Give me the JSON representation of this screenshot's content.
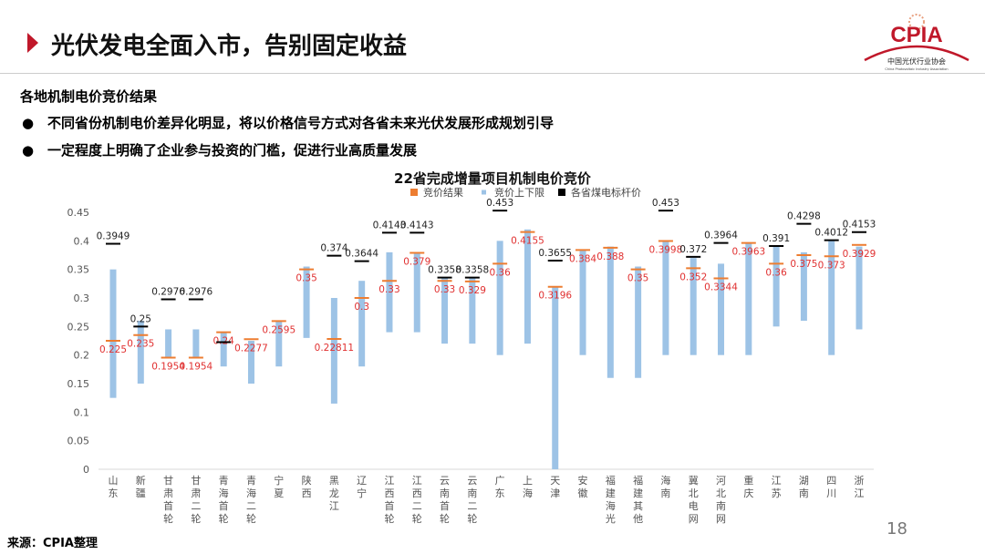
{
  "header": {
    "title": "光伏发电全面入市，告别固定收益",
    "logo_text": "CPIA",
    "logo_subtitle": "中国光伏行业协会",
    "logo_english": "China Photovoltaic Industry Association"
  },
  "subtitle": "各地机制电价竞价结果",
  "bullets": [
    "不同省份机制电价差异化明显，将以价格信号方式对各省未来光伏发展形成规划引导",
    "一定程度上明确了企业参与投资的门槛，促进行业高质量发展"
  ],
  "footer": {
    "source": "来源：CPIA整理",
    "page_number": "18"
  },
  "colors": {
    "accent": "#c0182a",
    "result": "#ed7d31",
    "range": "#9dc3e6",
    "coal": "#000000",
    "result_label": "#e03030"
  },
  "chart_data": {
    "type": "range-bar",
    "title": "22省完成增量项目机制电价竞价",
    "legend": [
      "竞价结果",
      "竞价上下限",
      "各省煤电标杆价"
    ],
    "legend_position": "top",
    "ylim": [
      0,
      0.45
    ],
    "yticks": [
      "0",
      "0.05",
      "0.1",
      "0.15",
      "0.2",
      "0.25",
      "0.3",
      "0.35",
      "0.4",
      "0.45"
    ],
    "grid": false,
    "categories": [
      "山东",
      "新疆",
      "甘肃首轮",
      "甘肃二轮",
      "青海首轮",
      "青海二轮",
      "宁夏",
      "陕西",
      "黑龙江",
      "辽宁",
      "江西首轮",
      "江西二轮",
      "云南首轮",
      "云南二轮",
      "广东",
      "上海",
      "天津",
      "安徽",
      "福建海光",
      "福建其他",
      "海南",
      "冀北电网",
      "河北南网",
      "重庆",
      "江苏",
      "湖南",
      "四川",
      "浙江"
    ],
    "range_low": [
      0.125,
      0.15,
      0.195,
      0.195,
      0.18,
      0.15,
      0.18,
      0.23,
      0.115,
      0.18,
      0.24,
      0.24,
      0.22,
      0.22,
      0.2,
      0.22,
      0,
      0.2,
      0.16,
      0.16,
      0.2,
      0.2,
      0.2,
      0.2,
      0.25,
      0.26,
      0.2,
      0.245
    ],
    "range_high": [
      0.35,
      0.26,
      0.245,
      0.245,
      0.24,
      0.225,
      0.26,
      0.355,
      0.3,
      0.33,
      0.38,
      0.38,
      0.335,
      0.335,
      0.4,
      0.42,
      0.32,
      0.385,
      0.39,
      0.355,
      0.4,
      0.37,
      0.36,
      0.395,
      0.39,
      0.38,
      0.4,
      0.39
    ],
    "result": [
      0.225,
      0.235,
      0.1954,
      0.1954,
      0.24,
      0.2277,
      0.2595,
      0.35,
      0.22811,
      0.3,
      0.33,
      0.379,
      0.33,
      0.329,
      0.36,
      0.4155,
      0.3196,
      0.384,
      0.388,
      0.35,
      0.3998,
      0.352,
      0.3344,
      0.3963,
      0.36,
      0.375,
      0.373,
      0.3929
    ],
    "coal": [
      0.3949,
      0.25,
      0.2976,
      0.2976,
      0.2227,
      null,
      null,
      null,
      0.374,
      0.3644,
      0.4143,
      0.4143,
      0.3358,
      0.3358,
      0.453,
      null,
      0.3655,
      null,
      null,
      null,
      0.453,
      0.372,
      0.3964,
      null,
      0.391,
      0.4298,
      0.4012,
      0.4153
    ],
    "result_labels": [
      "0.225",
      "0.235",
      "0.1954",
      "0.1954",
      "0.24",
      "0.2277",
      "0.2595",
      "0.35",
      "0.22811",
      "0.3",
      "0.33",
      "0.379",
      "0.33",
      "0.329",
      "0.36",
      "0.4155",
      "0.3196",
      "0.384",
      "0.388",
      "0.35",
      "0.3998",
      "0.352",
      "0.3344",
      "0.3963",
      "0.36",
      "0.375",
      "0.373",
      "0.3929"
    ],
    "coal_labels": [
      "0.3949",
      "0.25",
      "0.2976",
      "0.2976",
      "",
      "",
      "",
      "",
      "0.374",
      "0.3644",
      "0.4143",
      "0.4143",
      "0.3358",
      "0.3358",
      "0.453",
      "",
      "0.3655",
      "",
      "",
      "",
      "0.453",
      "0.372",
      "0.3964",
      "",
      "0.391",
      "0.4298",
      "0.4012",
      "0.4153"
    ]
  }
}
